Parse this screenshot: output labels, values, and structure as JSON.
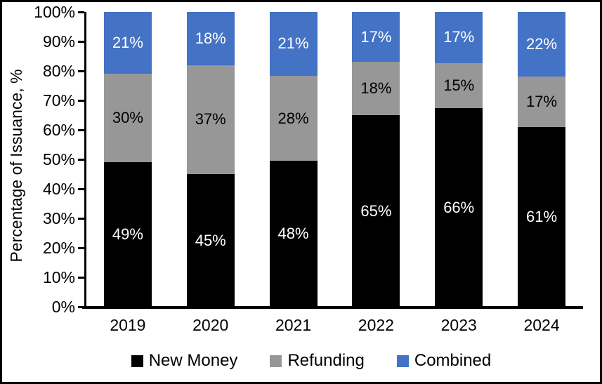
{
  "chart_data": {
    "type": "bar",
    "stacked": true,
    "title": "",
    "ylabel": "Percentage of Issuance, %",
    "xlabel": "",
    "ylim": [
      0,
      100
    ],
    "grid": false,
    "legend_position": "bottom",
    "categories": [
      "2019",
      "2020",
      "2021",
      "2022",
      "2023",
      "2024"
    ],
    "y_ticks": [
      "0%",
      "10%",
      "20%",
      "30%",
      "40%",
      "50%",
      "60%",
      "70%",
      "80%",
      "90%",
      "100%"
    ],
    "series": [
      {
        "name": "New Money",
        "color": "#000000",
        "label_color": "#ffffff",
        "values": [
          49,
          45,
          48,
          65,
          66,
          61
        ]
      },
      {
        "name": "Refunding",
        "color": "#979797",
        "label_color": "#000000",
        "values": [
          30,
          37,
          28,
          18,
          15,
          17
        ]
      },
      {
        "name": "Combined",
        "color": "#4472C4",
        "label_color": "#ffffff",
        "values": [
          21,
          18,
          21,
          17,
          17,
          22
        ]
      }
    ],
    "data_label_suffix": "%"
  },
  "frame": {
    "border_color": "#000000",
    "background_color": "#ffffff"
  }
}
